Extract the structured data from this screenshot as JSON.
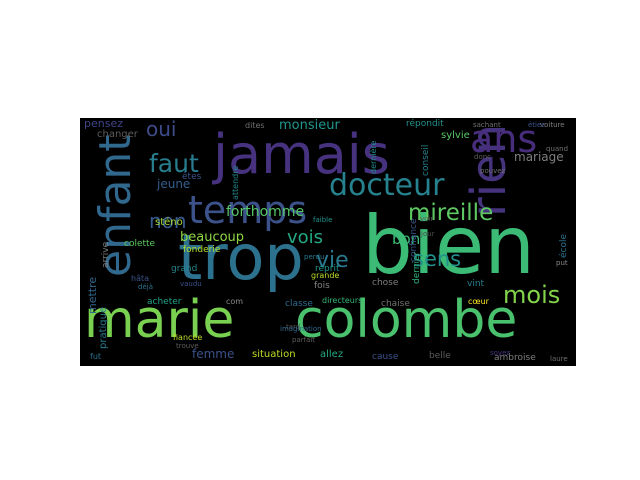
{
  "cloud": {
    "background": "#000000",
    "colormap": "viridis",
    "words": [
      {
        "text": "jamais",
        "color": "#46327e"
      },
      {
        "text": "bien",
        "color": "#3bbb75"
      },
      {
        "text": "trop",
        "color": "#2c728e"
      },
      {
        "text": "marie",
        "color": "#7ad151"
      },
      {
        "text": "colombe",
        "color": "#4ac16d"
      },
      {
        "text": "temps",
        "color": "#3b528b"
      },
      {
        "text": "enfant",
        "color": "#31688e"
      },
      {
        "text": "rien",
        "color": "#46337e"
      },
      {
        "text": "ans",
        "color": "#472d7b"
      },
      {
        "text": "docteur",
        "color": "#26828e"
      },
      {
        "text": "mireille",
        "color": "#5ec962"
      },
      {
        "text": "mois",
        "color": "#84d44b"
      },
      {
        "text": "faut",
        "color": "#287d8e"
      },
      {
        "text": "vie",
        "color": "#2a788e"
      },
      {
        "text": "sens",
        "color": "#21918c"
      },
      {
        "text": "oui",
        "color": "#3e4c8a"
      },
      {
        "text": "non",
        "color": "#375b8d"
      },
      {
        "text": "vois",
        "color": "#22a884"
      },
      {
        "text": "bon",
        "color": "#3aba76"
      },
      {
        "text": "forthomme",
        "color": "#56c667"
      },
      {
        "text": "beaucoup",
        "color": "#8fd744"
      },
      {
        "text": "jeune",
        "color": "#355f8d"
      },
      {
        "text": "monsieur",
        "color": "#1f988b"
      },
      {
        "text": "mariage",
        "color": "#7e7e7e"
      },
      {
        "text": "pensez",
        "color": "#404588"
      },
      {
        "text": "sylvie",
        "color": "#56c667"
      },
      {
        "text": "femme",
        "color": "#3b528b"
      },
      {
        "text": "situation",
        "color": "#bddf26"
      },
      {
        "text": "allez",
        "color": "#25ab82"
      },
      {
        "text": "mettre",
        "color": "#31688e"
      },
      {
        "text": "changer",
        "color": "#5c5c5c"
      },
      {
        "text": "pratique",
        "color": "#2a788e"
      },
      {
        "text": "fut",
        "color": "#2c728e"
      },
      {
        "text": "arrive",
        "color": "#7e7e7e"
      },
      {
        "text": "sténo",
        "color": "#a8db34"
      },
      {
        "text": "colette",
        "color": "#5ec962"
      },
      {
        "text": "fonderie",
        "color": "#b5de2b"
      },
      {
        "text": "acheter",
        "color": "#1fa088"
      },
      {
        "text": "grand",
        "color": "#24868e"
      },
      {
        "text": "reprit",
        "color": "#1f958b"
      },
      {
        "text": "fois",
        "color": "#808080"
      },
      {
        "text": "grande",
        "color": "#bddf26"
      },
      {
        "text": "chose",
        "color": "#7e7e7e"
      },
      {
        "text": "chaise",
        "color": "#6f6f6f"
      },
      {
        "text": "vint",
        "color": "#287d8e"
      },
      {
        "text": "cœur",
        "color": "#fde725"
      },
      {
        "text": "classe",
        "color": "#2f6c8e"
      },
      {
        "text": "directeurs",
        "color": "#35b779"
      },
      {
        "text": "cause",
        "color": "#3b528b"
      },
      {
        "text": "belle",
        "color": "#5c5c5c"
      },
      {
        "text": "ambroise",
        "color": "#7e7e7e"
      },
      {
        "text": "confiance",
        "color": "#38598c"
      },
      {
        "text": "conseil",
        "color": "#25838e"
      },
      {
        "text": "dernière",
        "color": "#23888e"
      },
      {
        "text": "dernier",
        "color": "#2db27d"
      },
      {
        "text": "répondit",
        "color": "#21918c"
      },
      {
        "text": "école",
        "color": "#2c728e"
      },
      {
        "text": "êtes",
        "color": "#3b528b"
      },
      {
        "text": "attendre",
        "color": "#24868e"
      },
      {
        "text": "dites",
        "color": "#6f6f6f"
      },
      {
        "text": "com",
        "color": "#8a8a8a"
      },
      {
        "text": "fiancée",
        "color": "#bddf26"
      },
      {
        "text": "tard",
        "color": "#555555"
      },
      {
        "text": "faible",
        "color": "#1f958b"
      },
      {
        "text": "hâta",
        "color": "#3b528b"
      },
      {
        "text": "voir",
        "color": "#5c5c5c"
      },
      {
        "text": "jour",
        "color": "#4a4a4a"
      },
      {
        "text": "trouve",
        "color": "#5c5c5c"
      },
      {
        "text": "laure",
        "color": "#6f6f6f"
      },
      {
        "text": "put",
        "color": "#8a8a8a"
      },
      {
        "text": "quand",
        "color": "#6f6f6f"
      },
      {
        "text": "voiture",
        "color": "#7e7e7e"
      },
      {
        "text": "sachant",
        "color": "#6f6f6f"
      },
      {
        "text": "étiez",
        "color": "#3b528b"
      },
      {
        "text": "imagination",
        "color": "#31688e"
      },
      {
        "text": "perdu",
        "color": "#2a788e"
      },
      {
        "text": "vaudu",
        "color": "#3b528b"
      },
      {
        "text": "déjà",
        "color": "#2c728e"
      },
      {
        "text": "parfait",
        "color": "#5c5c5c"
      },
      {
        "text": "soyez",
        "color": "#46337e"
      },
      {
        "text": "pouvez",
        "color": "#6f6f6f"
      },
      {
        "text": "donc",
        "color": "#5c5c5c"
      }
    ]
  }
}
